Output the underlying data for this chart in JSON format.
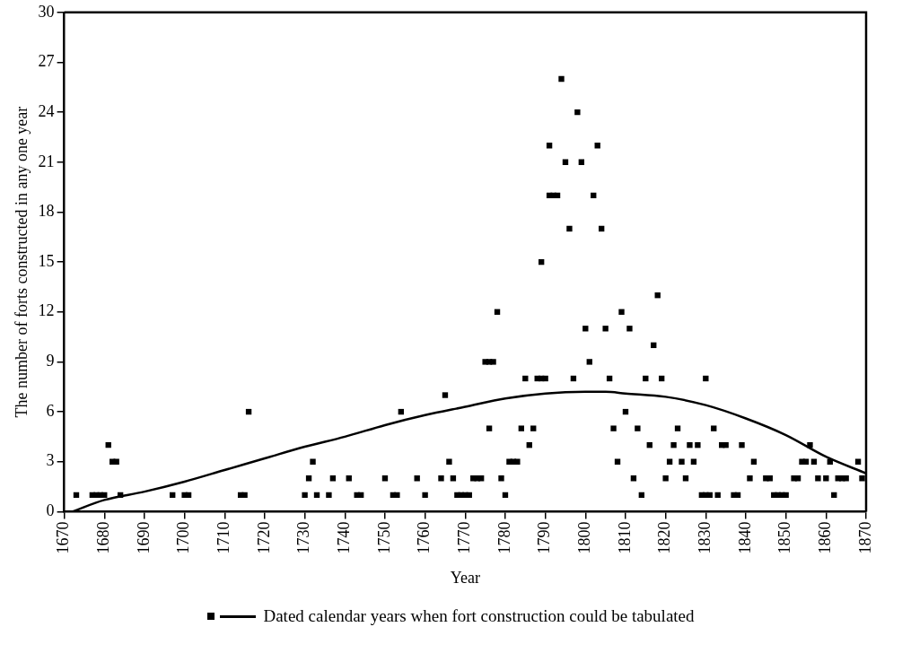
{
  "chart_data": {
    "type": "scatter",
    "xlabel": "Year",
    "ylabel": "The number of forts constructed in any one year",
    "xlim": [
      1670,
      1870
    ],
    "xticks": [
      1670,
      1680,
      1690,
      1700,
      1710,
      1720,
      1730,
      1740,
      1750,
      1760,
      1770,
      1780,
      1790,
      1800,
      1810,
      1820,
      1830,
      1840,
      1850,
      1860,
      1870
    ],
    "ylim": [
      0,
      30
    ],
    "yticks": [
      0,
      3,
      6,
      9,
      12,
      15,
      18,
      21,
      24,
      27,
      30
    ],
    "grid": false,
    "legend": "bottom",
    "marker": "square",
    "series": [
      {
        "name": "Dated calendar years when fort construction could be tabulated",
        "type": "scatter",
        "color": "#000000",
        "x": [
          1673,
          1677,
          1678,
          1679,
          1680,
          1681,
          1682,
          1683,
          1684,
          1697,
          1700,
          1701,
          1714,
          1715,
          1716,
          1730,
          1731,
          1732,
          1733,
          1736,
          1737,
          1741,
          1743,
          1744,
          1750,
          1752,
          1753,
          1754,
          1758,
          1760,
          1764,
          1765,
          1766,
          1767,
          1768,
          1769,
          1770,
          1771,
          1772,
          1773,
          1774,
          1775,
          1776,
          1777,
          1776,
          1778,
          1779,
          1780,
          1781,
          1782,
          1783,
          1784,
          1785,
          1786,
          1787,
          1788,
          1789,
          1790,
          1789,
          1791,
          1792,
          1793,
          1791,
          1794,
          1795,
          1796,
          1797,
          1798,
          1799,
          1800,
          1801,
          1802,
          1803,
          1804,
          1805,
          1806,
          1807,
          1808,
          1809,
          1810,
          1811,
          1812,
          1813,
          1814,
          1815,
          1816,
          1817,
          1818,
          1819,
          1820,
          1821,
          1822,
          1823,
          1824,
          1825,
          1826,
          1827,
          1828,
          1829,
          1830,
          1830,
          1831,
          1832,
          1833,
          1834,
          1835,
          1837,
          1838,
          1839,
          1841,
          1842,
          1845,
          1846,
          1847,
          1848,
          1849,
          1850,
          1852,
          1853,
          1854,
          1855,
          1856,
          1857,
          1858,
          1860,
          1861,
          1862,
          1863,
          1864,
          1865,
          1868,
          1869
        ],
        "values": [
          1,
          1,
          1,
          1,
          1,
          4,
          3,
          3,
          1,
          1,
          1,
          1,
          1,
          1,
          6,
          1,
          2,
          3,
          1,
          1,
          2,
          2,
          1,
          1,
          2,
          1,
          1,
          6,
          2,
          1,
          2,
          7,
          3,
          2,
          1,
          1,
          1,
          1,
          2,
          2,
          2,
          9,
          9,
          9,
          5,
          12,
          2,
          1,
          3,
          3,
          3,
          5,
          8,
          4,
          5,
          8,
          8,
          8,
          15,
          19,
          19,
          19,
          22,
          26,
          21,
          17,
          8,
          24,
          21,
          11,
          9,
          19,
          22,
          17,
          11,
          8,
          5,
          3,
          12,
          6,
          11,
          2,
          5,
          1,
          8,
          4,
          10,
          13,
          8,
          2,
          3,
          4,
          5,
          3,
          2,
          4,
          3,
          4,
          1,
          8,
          1,
          1,
          5,
          1,
          4,
          4,
          1,
          1,
          4,
          2,
          3,
          2,
          2,
          1,
          1,
          1,
          1,
          2,
          2,
          3,
          3,
          4,
          3,
          2,
          2,
          3,
          1,
          2,
          2,
          2,
          3,
          2
        ]
      },
      {
        "type": "line",
        "color": "#000000",
        "marker": "none",
        "x": [
          1672,
          1680,
          1690,
          1700,
          1710,
          1720,
          1730,
          1740,
          1750,
          1760,
          1770,
          1780,
          1790,
          1800,
          1805,
          1810,
          1820,
          1830,
          1840,
          1850,
          1860,
          1870
        ],
        "values": [
          0,
          0.7,
          1.2,
          1.8,
          2.5,
          3.2,
          3.9,
          4.5,
          5.2,
          5.8,
          6.3,
          6.8,
          7.1,
          7.2,
          7.2,
          7.1,
          6.9,
          6.4,
          5.6,
          4.6,
          3.3,
          2.3
        ]
      }
    ]
  }
}
